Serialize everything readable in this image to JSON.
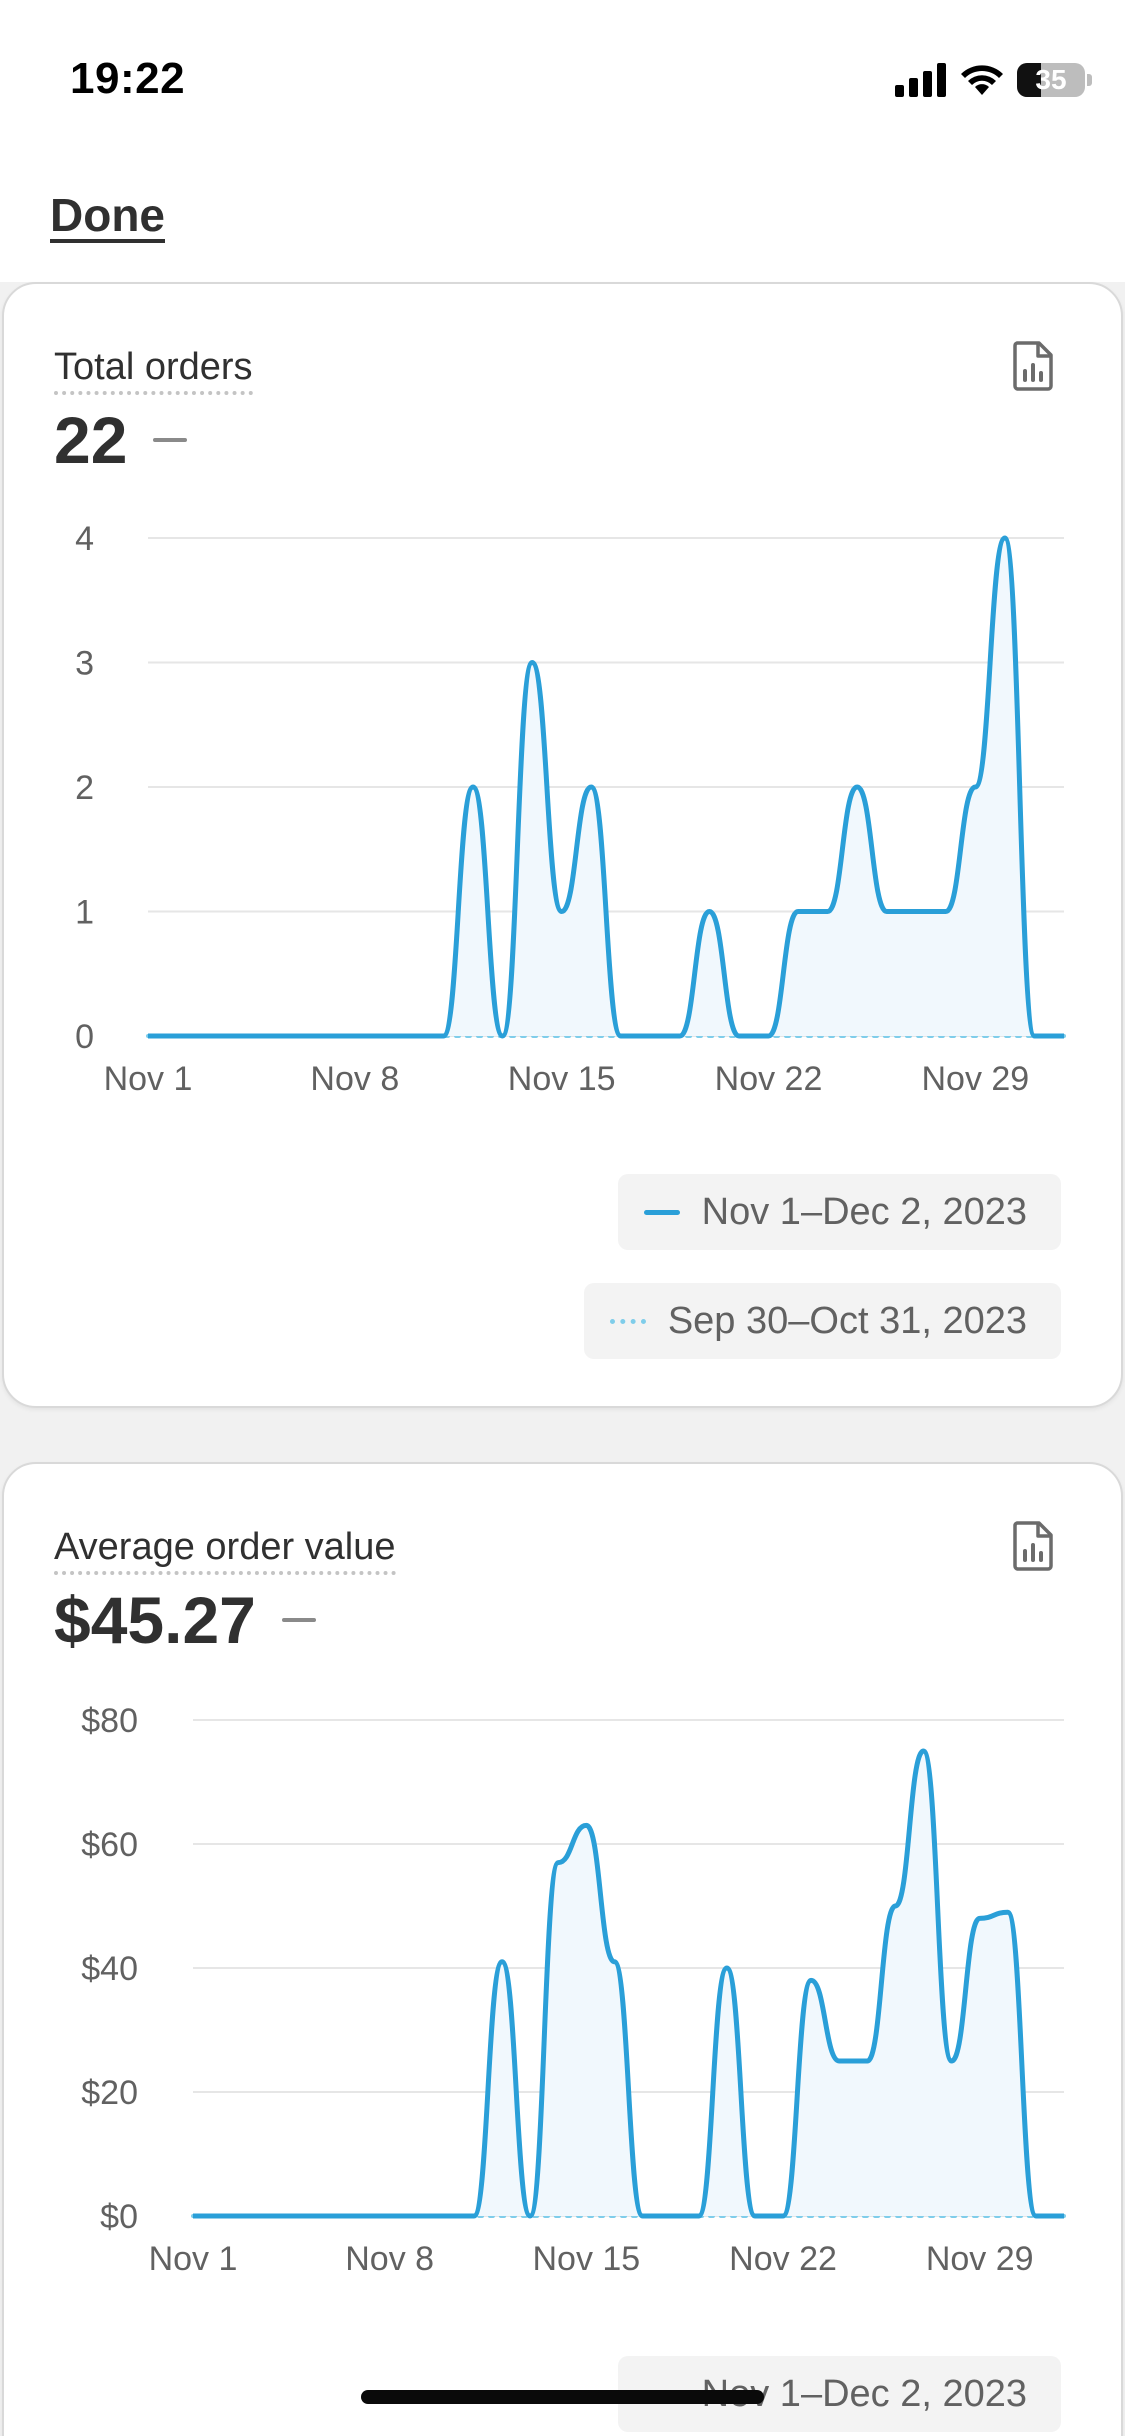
{
  "status_bar": {
    "time": "19:22",
    "battery": "35",
    "icons": [
      "signal-icon",
      "wifi-icon",
      "battery-icon"
    ]
  },
  "header": {
    "done_label": "Done"
  },
  "colors": {
    "line": "#2a9fd8",
    "comparison": "#7fcdea",
    "fill": "#f1f8fd",
    "grid": "#e6e6e6"
  },
  "cards": [
    {
      "title": "Total orders",
      "value": "22",
      "legend": [
        "Nov 1–Dec 2, 2023",
        "Sep 30–Oct 31, 2023"
      ]
    },
    {
      "title": "Average order value",
      "value": "$45.27",
      "legend": [
        "Nov 1–Dec 2, 2023"
      ]
    }
  ],
  "chart_data": [
    {
      "type": "area",
      "x_tick_labels": [
        "Nov 1",
        "Nov 8",
        "Nov 15",
        "Nov 22",
        "Nov 29"
      ],
      "y_tick_labels": [
        "0",
        "1",
        "2",
        "3",
        "4"
      ],
      "ylim": [
        0,
        4
      ],
      "grid": true,
      "legend_placement": "bottom-right",
      "series": [
        {
          "name": "Nov 1–Dec 2, 2023",
          "style": "solid",
          "x": [
            "Nov 1",
            "Nov 2",
            "Nov 3",
            "Nov 4",
            "Nov 5",
            "Nov 6",
            "Nov 7",
            "Nov 8",
            "Nov 9",
            "Nov 10",
            "Nov 11",
            "Nov 12",
            "Nov 13",
            "Nov 14",
            "Nov 15",
            "Nov 16",
            "Nov 17",
            "Nov 18",
            "Nov 19",
            "Nov 20",
            "Nov 21",
            "Nov 22",
            "Nov 23",
            "Nov 24",
            "Nov 25",
            "Nov 26",
            "Nov 27",
            "Nov 28",
            "Nov 29",
            "Nov 30",
            "Dec 1",
            "Dec 2"
          ],
          "values": [
            0,
            0,
            0,
            0,
            0,
            0,
            0,
            0,
            0,
            0,
            0,
            2,
            0,
            3,
            1,
            2,
            0,
            0,
            0,
            1,
            0,
            0,
            1,
            1,
            2,
            1,
            1,
            1,
            2,
            4,
            0,
            0
          ]
        },
        {
          "name": "Sep 30–Oct 31, 2023",
          "style": "dotted",
          "values": [
            0,
            0,
            0,
            0,
            0,
            0,
            0,
            0,
            0,
            0,
            0,
            0,
            0,
            0,
            0,
            0,
            0,
            0,
            0,
            0,
            0,
            0,
            0,
            0,
            0,
            0,
            0,
            0,
            0,
            0,
            0,
            0
          ]
        }
      ]
    },
    {
      "type": "area",
      "x_tick_labels": [
        "Nov 1",
        "Nov 8",
        "Nov 15",
        "Nov 22",
        "Nov 29"
      ],
      "y_tick_labels": [
        "$0",
        "$20",
        "$40",
        "$60",
        "$80"
      ],
      "ylim": [
        0,
        80
      ],
      "grid": true,
      "legend_placement": "bottom-right",
      "series": [
        {
          "name": "Nov 1–Dec 2, 2023",
          "style": "solid",
          "x": [
            "Nov 1",
            "Nov 2",
            "Nov 3",
            "Nov 4",
            "Nov 5",
            "Nov 6",
            "Nov 7",
            "Nov 8",
            "Nov 9",
            "Nov 10",
            "Nov 11",
            "Nov 12",
            "Nov 13",
            "Nov 14",
            "Nov 15",
            "Nov 16",
            "Nov 17",
            "Nov 18",
            "Nov 19",
            "Nov 20",
            "Nov 21",
            "Nov 22",
            "Nov 23",
            "Nov 24",
            "Nov 25",
            "Nov 26",
            "Nov 27",
            "Nov 28",
            "Nov 29",
            "Nov 30",
            "Dec 1",
            "Dec 2"
          ],
          "values": [
            0,
            0,
            0,
            0,
            0,
            0,
            0,
            0,
            0,
            0,
            0,
            41,
            0,
            57,
            63,
            41,
            0,
            0,
            0,
            40,
            0,
            0,
            38,
            25,
            25,
            50,
            75,
            25,
            48,
            49,
            0,
            0
          ]
        },
        {
          "name": "Sep 30–Oct 31, 2023",
          "style": "dotted",
          "values": [
            0,
            0,
            0,
            0,
            0,
            0,
            0,
            0,
            0,
            0,
            0,
            0,
            0,
            0,
            0,
            0,
            0,
            0,
            0,
            0,
            0,
            0,
            0,
            0,
            0,
            0,
            0,
            0,
            0,
            0,
            0,
            0
          ]
        }
      ]
    }
  ]
}
